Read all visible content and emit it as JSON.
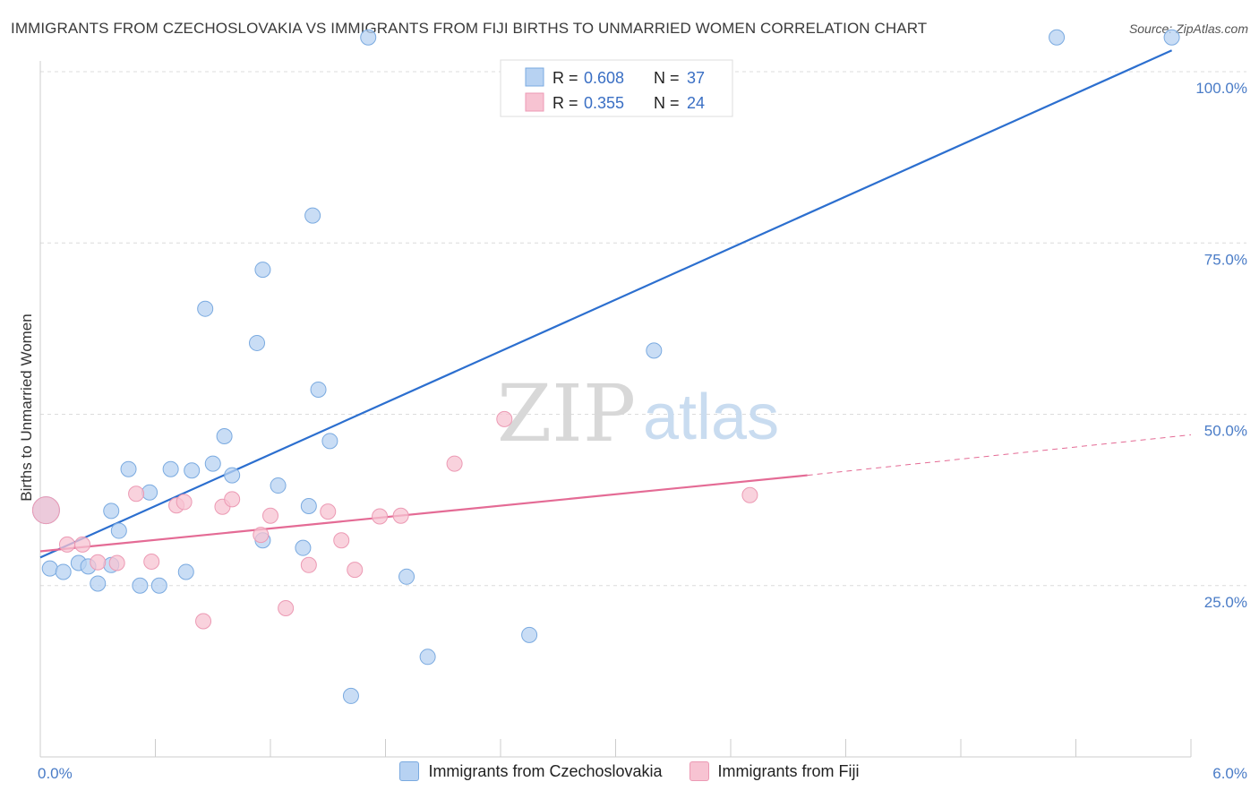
{
  "title": "IMMIGRANTS FROM CZECHOSLOVAKIA VS IMMIGRANTS FROM FIJI BIRTHS TO UNMARRIED WOMEN CORRELATION CHART",
  "source": "Source: ZipAtlas.com",
  "watermark": {
    "zip": "ZIP",
    "atlas": "atlas"
  },
  "legend": {
    "r_label": "R =",
    "n_label": "N =",
    "rows": [
      {
        "r": "0.608",
        "n": "37"
      },
      {
        "r": "0.355",
        "n": "24"
      }
    ]
  },
  "colors": {
    "blue_fill": "#b7d2f2",
    "blue_stroke": "#7aaae0",
    "blue_line": "#2c6fcf",
    "pink_fill": "#f7c3d2",
    "pink_stroke": "#ec9ab4",
    "pink_line": "#e46b95",
    "tick_text": "#4a7cc7"
  },
  "chart_data": {
    "type": "scatter",
    "ylabel": "Births to Unmarried Women",
    "x_tick_labels": [
      "0.0%",
      "6.0%"
    ],
    "y_tick_labels": [
      "25.0%",
      "50.0%",
      "75.0%",
      "100.0%"
    ],
    "y_ticks": [
      25,
      50,
      75,
      100
    ],
    "xlim": [
      0,
      6
    ],
    "ylim": [
      0,
      103
    ],
    "grid": true,
    "legend_placement": "top-center",
    "series": [
      {
        "name": "Immigrants from Czechoslovakia",
        "color": "#b7d2f2",
        "points": [
          [
            0.05,
            27.5
          ],
          [
            0.12,
            27.0
          ],
          [
            0.2,
            28.3
          ],
          [
            0.25,
            27.8
          ],
          [
            0.3,
            25.3
          ],
          [
            0.37,
            28.0
          ],
          [
            0.37,
            35.9
          ],
          [
            0.41,
            33.0
          ],
          [
            0.46,
            42.0
          ],
          [
            0.52,
            25.0
          ],
          [
            0.57,
            38.6
          ],
          [
            0.62,
            25.0
          ],
          [
            0.68,
            42.0
          ],
          [
            0.76,
            27.0
          ],
          [
            0.79,
            41.8
          ],
          [
            0.86,
            65.4
          ],
          [
            0.9,
            42.8
          ],
          [
            0.96,
            46.8
          ],
          [
            1.0,
            41.1
          ],
          [
            1.13,
            60.4
          ],
          [
            1.16,
            31.6
          ],
          [
            1.16,
            71.1
          ],
          [
            1.24,
            39.6
          ],
          [
            1.37,
            30.5
          ],
          [
            1.4,
            36.6
          ],
          [
            1.42,
            79.0
          ],
          [
            1.45,
            53.6
          ],
          [
            1.51,
            46.1
          ],
          [
            1.62,
            8.9
          ],
          [
            1.71,
            105.0
          ],
          [
            1.91,
            26.3
          ],
          [
            2.02,
            14.6
          ],
          [
            2.55,
            17.8
          ],
          [
            3.2,
            59.3
          ],
          [
            5.3,
            105.0
          ],
          [
            5.9,
            105.0
          ],
          [
            0.03,
            36.0
          ]
        ]
      },
      {
        "name": "Immigrants from Fiji",
        "color": "#f7c3d2",
        "points": [
          [
            0.03,
            36.0
          ],
          [
            0.14,
            31.0
          ],
          [
            0.22,
            31.0
          ],
          [
            0.3,
            28.4
          ],
          [
            0.4,
            28.3
          ],
          [
            0.5,
            38.4
          ],
          [
            0.58,
            28.5
          ],
          [
            0.71,
            36.7
          ],
          [
            0.75,
            37.2
          ],
          [
            0.85,
            19.8
          ],
          [
            0.95,
            36.5
          ],
          [
            1.0,
            37.6
          ],
          [
            1.15,
            32.4
          ],
          [
            1.2,
            35.2
          ],
          [
            1.28,
            21.7
          ],
          [
            1.4,
            28.0
          ],
          [
            1.5,
            35.8
          ],
          [
            1.57,
            31.6
          ],
          [
            1.64,
            27.3
          ],
          [
            1.77,
            35.1
          ],
          [
            1.88,
            35.2
          ],
          [
            2.16,
            42.8
          ],
          [
            2.42,
            49.3
          ],
          [
            3.7,
            38.2
          ]
        ]
      }
    ],
    "trendlines": [
      {
        "series": "Immigrants from Czechoslovakia",
        "x": [
          0,
          5.9
        ],
        "y": [
          29.1,
          103.1
        ]
      },
      {
        "series": "Immigrants from Fiji",
        "x": [
          0,
          4.0
        ],
        "y": [
          30.0,
          41.1
        ],
        "dashed_to": [
          6.0,
          47.0
        ]
      }
    ]
  }
}
